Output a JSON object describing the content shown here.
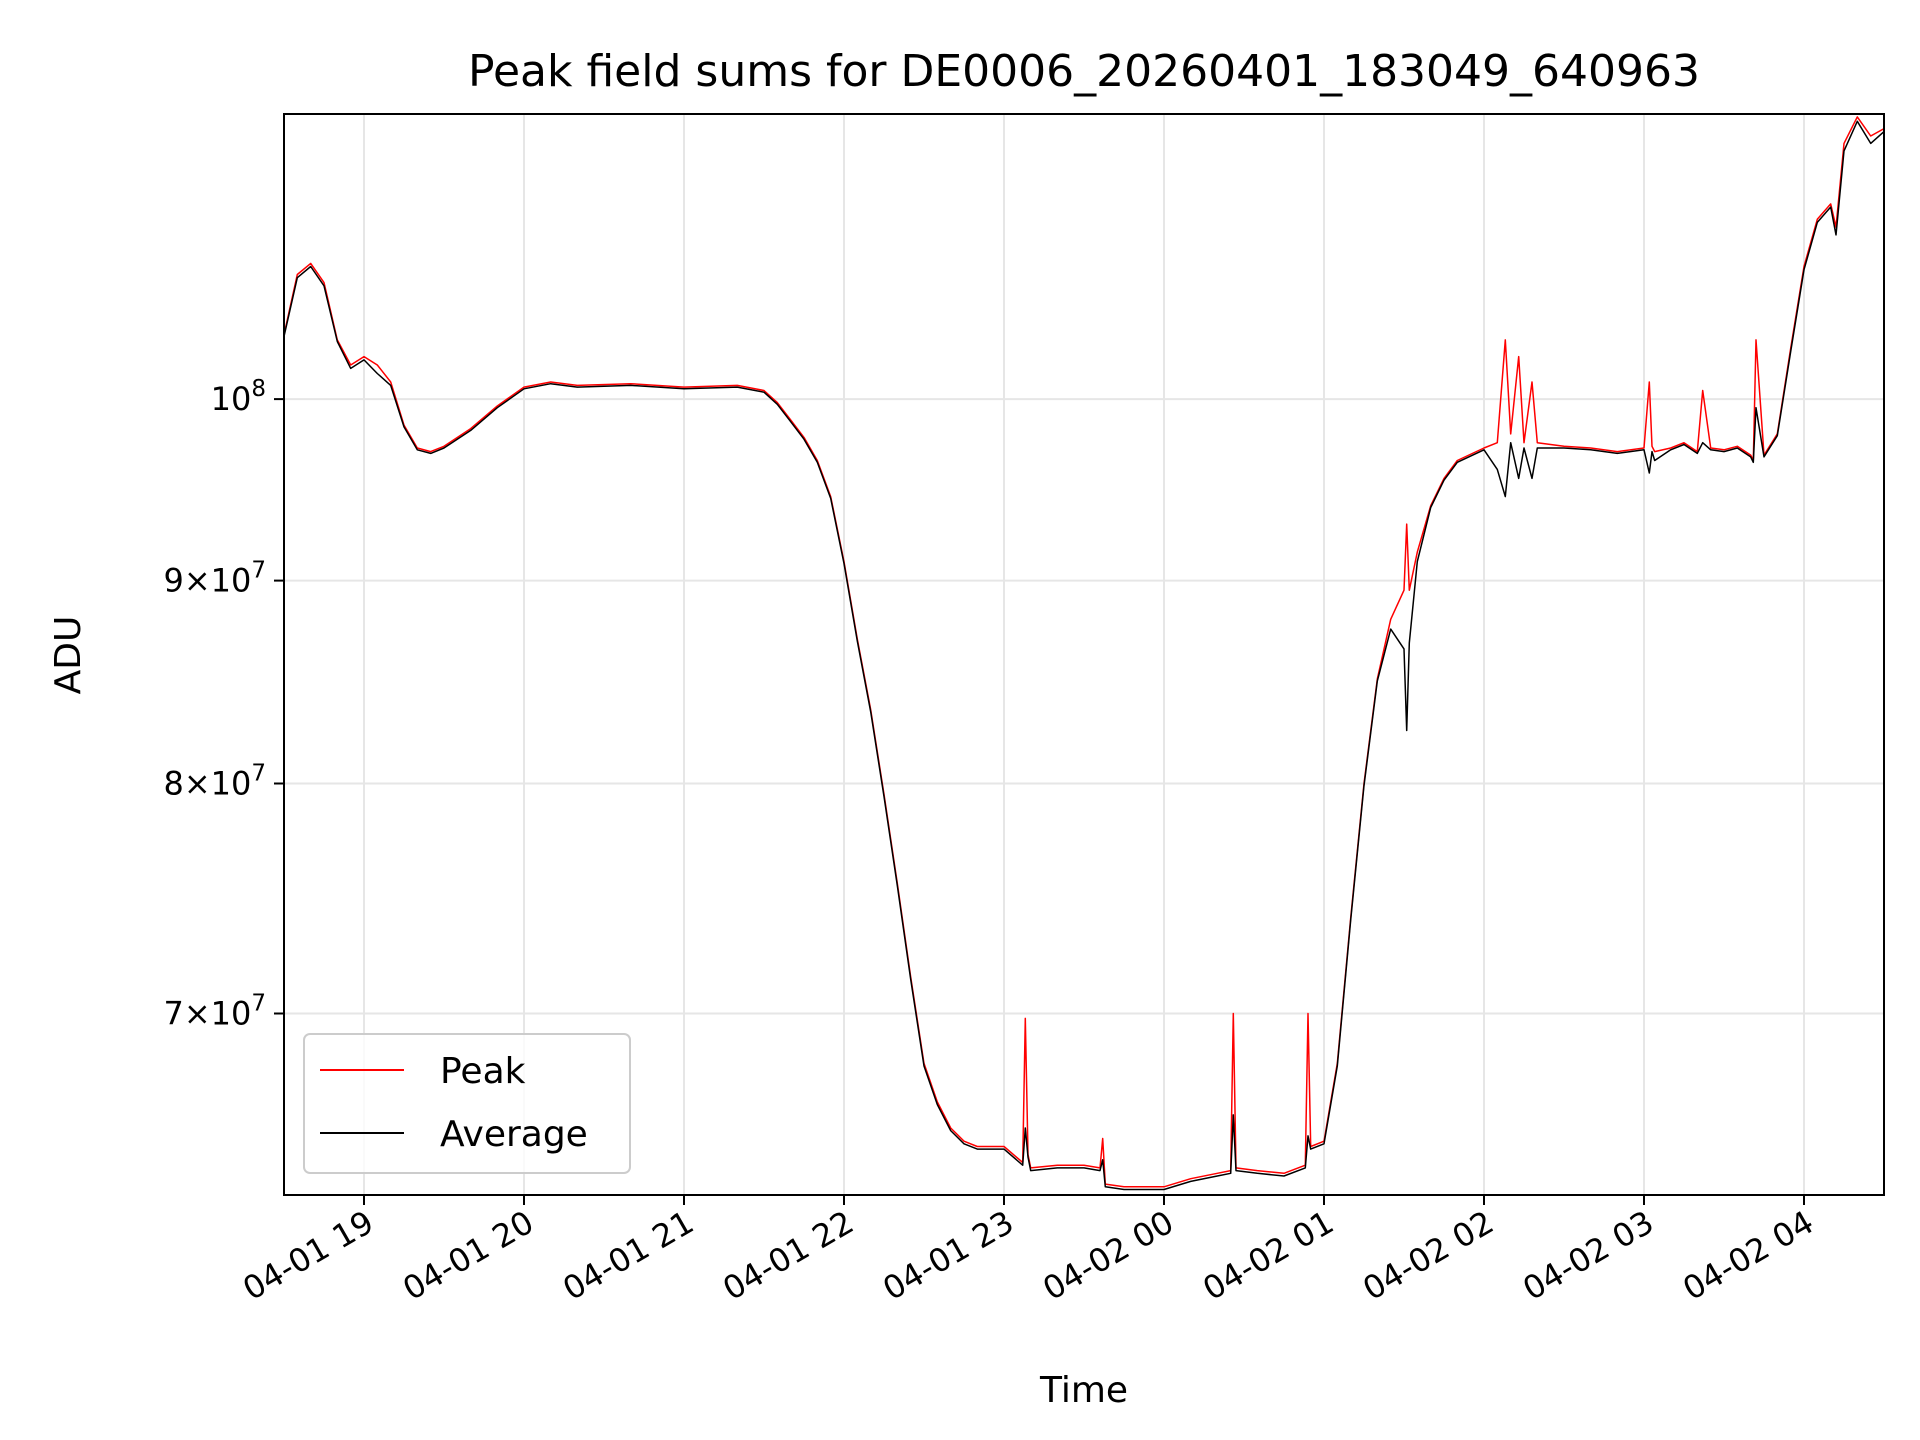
{
  "chart_data": {
    "type": "line",
    "title": "Peak field sums for DE0006_20260401_183049_640963",
    "xlabel": "Time",
    "ylabel": "ADU",
    "yscale": "log",
    "xlim": [
      "04-01 18:30",
      "04-02 04:30"
    ],
    "ylim": [
      63000000,
      118000000
    ],
    "grid": true,
    "legend_position": "lower-left",
    "colors": {
      "peak": "#ff0000",
      "average": "#000000",
      "grid": "#e6e6e6",
      "axes": "#000000"
    },
    "x_ticks": [
      "04-01 19",
      "04-01 20",
      "04-01 21",
      "04-01 22",
      "04-01 23",
      "04-02 00",
      "04-02 01",
      "04-02 02",
      "04-02 03",
      "04-02 04"
    ],
    "y_ticks": [
      {
        "value": 70000000,
        "mantissa": "7",
        "base": "10",
        "exp": "7"
      },
      {
        "value": 80000000,
        "mantissa": "8",
        "base": "10",
        "exp": "7"
      },
      {
        "value": 90000000,
        "mantissa": "9",
        "base": "10",
        "exp": "7"
      },
      {
        "value": 100000000,
        "mantissa": "",
        "base": "10",
        "exp": "8"
      }
    ],
    "series": [
      {
        "name": "Peak",
        "x": [
          "04-01 18:30",
          "04-01 18:35",
          "04-01 18:40",
          "04-01 18:45",
          "04-01 18:50",
          "04-01 18:55",
          "04-01 19:00",
          "04-01 19:05",
          "04-01 19:10",
          "04-01 19:15",
          "04-01 19:20",
          "04-01 19:25",
          "04-01 19:30",
          "04-01 19:40",
          "04-01 19:50",
          "04-01 20:00",
          "04-01 20:10",
          "04-01 20:20",
          "04-01 20:40",
          "04-01 21:00",
          "04-01 21:20",
          "04-01 21:30",
          "04-01 21:35",
          "04-01 21:40",
          "04-01 21:45",
          "04-01 21:50",
          "04-01 21:55",
          "04-01 22:00",
          "04-01 22:05",
          "04-01 22:10",
          "04-01 22:15",
          "04-01 22:20",
          "04-01 22:25",
          "04-01 22:30",
          "04-01 22:35",
          "04-01 22:40",
          "04-01 22:45",
          "04-01 22:50",
          "04-01 23:00",
          "04-01 23:07",
          "04-01 23:08",
          "04-01 23:09",
          "04-01 23:10",
          "04-01 23:20",
          "04-01 23:30",
          "04-01 23:36",
          "04-01 23:37",
          "04-01 23:38",
          "04-01 23:45",
          "04-01 23:50",
          "04-02 00:00",
          "04-02 00:10",
          "04-02 00:20",
          "04-02 00:25",
          "04-02 00:26",
          "04-02 00:27",
          "04-02 00:35",
          "04-02 00:45",
          "04-02 00:53",
          "04-02 00:54",
          "04-02 00:55",
          "04-02 01:00",
          "04-02 01:05",
          "04-02 01:10",
          "04-02 01:15",
          "04-02 01:20",
          "04-02 01:25",
          "04-02 01:30",
          "04-02 01:31",
          "04-02 01:32",
          "04-02 01:35",
          "04-02 01:40",
          "04-02 01:45",
          "04-02 01:50",
          "04-02 02:00",
          "04-02 02:05",
          "04-02 02:08",
          "04-02 02:10",
          "04-02 02:13",
          "04-02 02:15",
          "04-02 02:18",
          "04-02 02:20",
          "04-02 02:30",
          "04-02 02:40",
          "04-02 02:50",
          "04-02 03:00",
          "04-02 03:02",
          "04-02 03:03",
          "04-02 03:04",
          "04-02 03:10",
          "04-02 03:15",
          "04-02 03:20",
          "04-02 03:22",
          "04-02 03:25",
          "04-02 03:30",
          "04-02 03:35",
          "04-02 03:40",
          "04-02 03:41",
          "04-02 03:42",
          "04-02 03:45",
          "04-02 03:50",
          "04-02 03:55",
          "04-02 04:00",
          "04-02 04:05",
          "04-02 04:10",
          "04-02 04:12",
          "04-02 04:15",
          "04-02 04:20",
          "04-02 04:25",
          "04-02 04:30"
        ],
        "y": [
          103800000,
          107500000,
          108200000,
          107000000,
          103500000,
          102000000,
          102500000,
          102000000,
          101000000,
          98500000,
          97200000,
          97000000,
          97300000,
          98300000,
          99600000,
          100700000,
          101000000,
          100800000,
          100900000,
          100700000,
          100800000,
          100500000,
          99800000,
          98800000,
          97800000,
          96500000,
          94500000,
          91000000,
          87000000,
          83500000,
          79500000,
          75500000,
          71500000,
          68000000,
          66500000,
          65500000,
          65000000,
          64800000,
          64800000,
          64200000,
          69800000,
          64500000,
          64000000,
          64100000,
          64100000,
          64000000,
          65100000,
          63400000,
          63300000,
          63300000,
          63300000,
          63600000,
          63800000,
          63900000,
          70000000,
          64000000,
          63900000,
          63800000,
          64100000,
          70000000,
          64800000,
          65000000,
          68000000,
          74000000,
          80000000,
          85000000,
          88000000,
          89500000,
          93000000,
          89500000,
          91500000,
          94000000,
          95500000,
          96500000,
          97200000,
          97500000,
          103500000,
          98000000,
          102500000,
          97500000,
          101000000,
          97500000,
          97300000,
          97200000,
          97000000,
          97200000,
          101000000,
          97300000,
          97000000,
          97200000,
          97500000,
          97000000,
          100500000,
          97200000,
          97100000,
          97300000,
          96800000,
          96500000,
          103500000,
          96800000,
          98000000,
          103000000,
          108000000,
          111000000,
          112000000,
          110500000,
          116000000,
          117800000,
          116500000,
          117000000
        ]
      },
      {
        "name": "Average",
        "x": [
          "04-01 18:30",
          "04-01 18:35",
          "04-01 18:40",
          "04-01 18:45",
          "04-01 18:50",
          "04-01 18:55",
          "04-01 19:00",
          "04-01 19:05",
          "04-01 19:10",
          "04-01 19:15",
          "04-01 19:20",
          "04-01 19:25",
          "04-01 19:30",
          "04-01 19:40",
          "04-01 19:50",
          "04-01 20:00",
          "04-01 20:10",
          "04-01 20:20",
          "04-01 20:40",
          "04-01 21:00",
          "04-01 21:20",
          "04-01 21:30",
          "04-01 21:35",
          "04-01 21:40",
          "04-01 21:45",
          "04-01 21:50",
          "04-01 21:55",
          "04-01 22:00",
          "04-01 22:05",
          "04-01 22:10",
          "04-01 22:15",
          "04-01 22:20",
          "04-01 22:25",
          "04-01 22:30",
          "04-01 22:35",
          "04-01 22:40",
          "04-01 22:45",
          "04-01 22:50",
          "04-01 23:00",
          "04-01 23:07",
          "04-01 23:08",
          "04-01 23:09",
          "04-01 23:10",
          "04-01 23:20",
          "04-01 23:30",
          "04-01 23:36",
          "04-01 23:37",
          "04-01 23:38",
          "04-01 23:45",
          "04-01 23:50",
          "04-02 00:00",
          "04-02 00:10",
          "04-02 00:20",
          "04-02 00:25",
          "04-02 00:26",
          "04-02 00:27",
          "04-02 00:35",
          "04-02 00:45",
          "04-02 00:53",
          "04-02 00:54",
          "04-02 00:55",
          "04-02 01:00",
          "04-02 01:05",
          "04-02 01:10",
          "04-02 01:15",
          "04-02 01:20",
          "04-02 01:25",
          "04-02 01:30",
          "04-02 01:31",
          "04-02 01:32",
          "04-02 01:35",
          "04-02 01:40",
          "04-02 01:45",
          "04-02 01:50",
          "04-02 02:00",
          "04-02 02:05",
          "04-02 02:08",
          "04-02 02:10",
          "04-02 02:13",
          "04-02 02:15",
          "04-02 02:18",
          "04-02 02:20",
          "04-02 02:30",
          "04-02 02:40",
          "04-02 02:50",
          "04-02 03:00",
          "04-02 03:02",
          "04-02 03:03",
          "04-02 03:04",
          "04-02 03:10",
          "04-02 03:15",
          "04-02 03:20",
          "04-02 03:22",
          "04-02 03:25",
          "04-02 03:30",
          "04-02 03:35",
          "04-02 03:40",
          "04-02 03:41",
          "04-02 03:42",
          "04-02 03:45",
          "04-02 03:50",
          "04-02 03:55",
          "04-02 04:00",
          "04-02 04:05",
          "04-02 04:10",
          "04-02 04:12",
          "04-02 04:15",
          "04-02 04:20",
          "04-02 04:25",
          "04-02 04:30"
        ],
        "y": [
          103700000,
          107300000,
          108000000,
          106800000,
          103400000,
          101800000,
          102300000,
          101500000,
          100800000,
          98400000,
          97100000,
          96900000,
          97200000,
          98200000,
          99500000,
          100600000,
          100900000,
          100700000,
          100800000,
          100600000,
          100700000,
          100400000,
          99700000,
          98700000,
          97700000,
          96400000,
          94400000,
          90900000,
          86900000,
          83400000,
          79400000,
          75400000,
          71400000,
          67900000,
          66400000,
          65400000,
          64900000,
          64700000,
          64700000,
          64100000,
          65500000,
          64400000,
          63900000,
          64000000,
          64000000,
          63900000,
          64300000,
          63300000,
          63200000,
          63200000,
          63200000,
          63500000,
          63700000,
          63800000,
          66000000,
          63900000,
          63800000,
          63700000,
          64000000,
          65200000,
          64700000,
          64900000,
          67900000,
          73900000,
          79900000,
          84900000,
          87500000,
          86500000,
          82500000,
          86800000,
          91000000,
          93900000,
          95400000,
          96400000,
          97100000,
          96000000,
          94500000,
          97500000,
          95500000,
          97200000,
          95500000,
          97200000,
          97200000,
          97100000,
          96900000,
          97100000,
          95800000,
          97000000,
          96500000,
          97100000,
          97400000,
          96900000,
          97500000,
          97100000,
          97000000,
          97200000,
          96700000,
          96400000,
          99500000,
          96700000,
          97900000,
          102800000,
          107800000,
          110800000,
          111800000,
          110000000,
          115500000,
          117500000,
          116000000,
          116800000
        ]
      }
    ]
  }
}
